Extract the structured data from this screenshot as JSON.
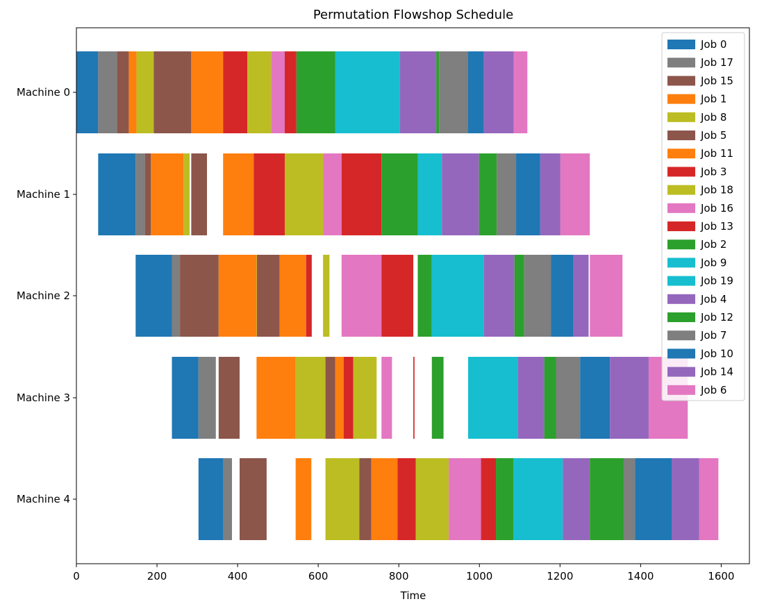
{
  "chart_data": {
    "type": "gantt",
    "title": "Permutation Flowshop Schedule",
    "xlabel": "Time",
    "ylabel": "",
    "xlim": [
      0,
      1670
    ],
    "xticks": [
      0,
      200,
      400,
      600,
      800,
      1000,
      1200,
      1400,
      1600
    ],
    "grid": false,
    "legend_position": "top-right",
    "machines": [
      "Machine 0",
      "Machine 1",
      "Machine 2",
      "Machine 3",
      "Machine 4"
    ],
    "jobs": [
      {
        "name": "Job 0",
        "color": "#1f77b4"
      },
      {
        "name": "Job 17",
        "color": "#7f7f7f"
      },
      {
        "name": "Job 15",
        "color": "#8c564b"
      },
      {
        "name": "Job 1",
        "color": "#ff7f0e"
      },
      {
        "name": "Job 8",
        "color": "#bcbd22"
      },
      {
        "name": "Job 5",
        "color": "#8c564b"
      },
      {
        "name": "Job 11",
        "color": "#ff7f0e"
      },
      {
        "name": "Job 3",
        "color": "#d62728"
      },
      {
        "name": "Job 18",
        "color": "#bcbd22"
      },
      {
        "name": "Job 16",
        "color": "#e377c2"
      },
      {
        "name": "Job 13",
        "color": "#d62728"
      },
      {
        "name": "Job 2",
        "color": "#2ca02c"
      },
      {
        "name": "Job 9",
        "color": "#17becf"
      },
      {
        "name": "Job 19",
        "color": "#17becf"
      },
      {
        "name": "Job 4",
        "color": "#9467bd"
      },
      {
        "name": "Job 12",
        "color": "#2ca02c"
      },
      {
        "name": "Job 7",
        "color": "#7f7f7f"
      },
      {
        "name": "Job 10",
        "color": "#1f77b4"
      },
      {
        "name": "Job 14",
        "color": "#9467bd"
      },
      {
        "name": "Job 6",
        "color": "#e377c2"
      }
    ],
    "tasks": [
      {
        "machine": 0,
        "job": "Job 0",
        "start": 0,
        "end": 54
      },
      {
        "machine": 0,
        "job": "Job 17",
        "start": 54,
        "end": 101
      },
      {
        "machine": 0,
        "job": "Job 15",
        "start": 101,
        "end": 130
      },
      {
        "machine": 0,
        "job": "Job 1",
        "start": 130,
        "end": 149
      },
      {
        "machine": 0,
        "job": "Job 8",
        "start": 149,
        "end": 192
      },
      {
        "machine": 0,
        "job": "Job 5",
        "start": 192,
        "end": 285
      },
      {
        "machine": 0,
        "job": "Job 11",
        "start": 285,
        "end": 364
      },
      {
        "machine": 0,
        "job": "Job 3",
        "start": 364,
        "end": 424
      },
      {
        "machine": 0,
        "job": "Job 18",
        "start": 424,
        "end": 483
      },
      {
        "machine": 0,
        "job": "Job 16",
        "start": 483,
        "end": 517
      },
      {
        "machine": 0,
        "job": "Job 13",
        "start": 517,
        "end": 546
      },
      {
        "machine": 0,
        "job": "Job 2",
        "start": 546,
        "end": 642
      },
      {
        "machine": 0,
        "job": "Job 9",
        "start": 642,
        "end": 803
      },
      {
        "machine": 0,
        "job": "Job 4",
        "start": 803,
        "end": 893
      },
      {
        "machine": 0,
        "job": "Job 12",
        "start": 893,
        "end": 900
      },
      {
        "machine": 0,
        "job": "Job 7",
        "start": 900,
        "end": 972
      },
      {
        "machine": 0,
        "job": "Job 10",
        "start": 972,
        "end": 1011
      },
      {
        "machine": 0,
        "job": "Job 14",
        "start": 1011,
        "end": 1085
      },
      {
        "machine": 0,
        "job": "Job 6",
        "start": 1085,
        "end": 1119
      },
      {
        "machine": 1,
        "job": "Job 0",
        "start": 54,
        "end": 147
      },
      {
        "machine": 1,
        "job": "Job 17",
        "start": 147,
        "end": 170
      },
      {
        "machine": 1,
        "job": "Job 15",
        "start": 170,
        "end": 185
      },
      {
        "machine": 1,
        "job": "Job 1",
        "start": 185,
        "end": 266
      },
      {
        "machine": 1,
        "job": "Job 8",
        "start": 266,
        "end": 281
      },
      {
        "machine": 1,
        "job": "Job 5",
        "start": 285,
        "end": 324
      },
      {
        "machine": 1,
        "job": "Job 11",
        "start": 364,
        "end": 440
      },
      {
        "machine": 1,
        "job": "Job 3",
        "start": 440,
        "end": 517
      },
      {
        "machine": 1,
        "job": "Job 18",
        "start": 517,
        "end": 612
      },
      {
        "machine": 1,
        "job": "Job 16",
        "start": 612,
        "end": 658
      },
      {
        "machine": 1,
        "job": "Job 13",
        "start": 658,
        "end": 757
      },
      {
        "machine": 1,
        "job": "Job 2",
        "start": 757,
        "end": 847
      },
      {
        "machine": 1,
        "job": "Job 9",
        "start": 847,
        "end": 907
      },
      {
        "machine": 1,
        "job": "Job 4",
        "start": 907,
        "end": 999
      },
      {
        "machine": 1,
        "job": "Job 12",
        "start": 999,
        "end": 1043
      },
      {
        "machine": 1,
        "job": "Job 7",
        "start": 1043,
        "end": 1091
      },
      {
        "machine": 1,
        "job": "Job 10",
        "start": 1091,
        "end": 1151
      },
      {
        "machine": 1,
        "job": "Job 14",
        "start": 1151,
        "end": 1201
      },
      {
        "machine": 1,
        "job": "Job 6",
        "start": 1201,
        "end": 1274
      },
      {
        "machine": 2,
        "job": "Job 0",
        "start": 147,
        "end": 237
      },
      {
        "machine": 2,
        "job": "Job 17",
        "start": 237,
        "end": 257
      },
      {
        "machine": 2,
        "job": "Job 15",
        "start": 257,
        "end": 353
      },
      {
        "machine": 2,
        "job": "Job 1",
        "start": 353,
        "end": 447
      },
      {
        "machine": 2,
        "job": "Job 8",
        "start": 447,
        "end": 448
      },
      {
        "machine": 2,
        "job": "Job 5",
        "start": 448,
        "end": 504
      },
      {
        "machine": 2,
        "job": "Job 11",
        "start": 504,
        "end": 570
      },
      {
        "machine": 2,
        "job": "Job 3",
        "start": 570,
        "end": 584
      },
      {
        "machine": 2,
        "job": "Job 18",
        "start": 612,
        "end": 628
      },
      {
        "machine": 2,
        "job": "Job 16",
        "start": 658,
        "end": 757
      },
      {
        "machine": 2,
        "job": "Job 13",
        "start": 757,
        "end": 836
      },
      {
        "machine": 2,
        "job": "Job 2",
        "start": 847,
        "end": 882
      },
      {
        "machine": 2,
        "job": "Job 9",
        "start": 882,
        "end": 1011
      },
      {
        "machine": 2,
        "job": "Job 4",
        "start": 1011,
        "end": 1087
      },
      {
        "machine": 2,
        "job": "Job 12",
        "start": 1087,
        "end": 1111
      },
      {
        "machine": 2,
        "job": "Job 7",
        "start": 1111,
        "end": 1178
      },
      {
        "machine": 2,
        "job": "Job 10",
        "start": 1178,
        "end": 1233
      },
      {
        "machine": 2,
        "job": "Job 14",
        "start": 1233,
        "end": 1271
      },
      {
        "machine": 2,
        "job": "Job 6",
        "start": 1274,
        "end": 1355
      },
      {
        "machine": 3,
        "job": "Job 0",
        "start": 237,
        "end": 303
      },
      {
        "machine": 3,
        "job": "Job 17",
        "start": 303,
        "end": 346
      },
      {
        "machine": 3,
        "job": "Job 15",
        "start": 353,
        "end": 405
      },
      {
        "machine": 3,
        "job": "Job 1",
        "start": 447,
        "end": 544
      },
      {
        "machine": 3,
        "job": "Job 8",
        "start": 544,
        "end": 618
      },
      {
        "machine": 3,
        "job": "Job 5",
        "start": 618,
        "end": 642
      },
      {
        "machine": 3,
        "job": "Job 11",
        "start": 642,
        "end": 663
      },
      {
        "machine": 3,
        "job": "Job 3",
        "start": 663,
        "end": 687
      },
      {
        "machine": 3,
        "job": "Job 18",
        "start": 687,
        "end": 745
      },
      {
        "machine": 3,
        "job": "Job 16",
        "start": 757,
        "end": 783
      },
      {
        "machine": 3,
        "job": "Job 13",
        "start": 836,
        "end": 839
      },
      {
        "machine": 3,
        "job": "Job 2",
        "start": 882,
        "end": 911
      },
      {
        "machine": 3,
        "job": "Job 9",
        "start": 972,
        "end": 1096
      },
      {
        "machine": 3,
        "job": "Job 4",
        "start": 1096,
        "end": 1161
      },
      {
        "machine": 3,
        "job": "Job 12",
        "start": 1161,
        "end": 1190
      },
      {
        "machine": 3,
        "job": "Job 7",
        "start": 1190,
        "end": 1250
      },
      {
        "machine": 3,
        "job": "Job 10",
        "start": 1250,
        "end": 1324
      },
      {
        "machine": 3,
        "job": "Job 14",
        "start": 1324,
        "end": 1420
      },
      {
        "machine": 3,
        "job": "Job 6",
        "start": 1420,
        "end": 1517
      },
      {
        "machine": 4,
        "job": "Job 0",
        "start": 303,
        "end": 365
      },
      {
        "machine": 4,
        "job": "Job 17",
        "start": 365,
        "end": 386
      },
      {
        "machine": 4,
        "job": "Job 15",
        "start": 405,
        "end": 472
      },
      {
        "machine": 4,
        "job": "Job 1",
        "start": 544,
        "end": 583
      },
      {
        "machine": 4,
        "job": "Job 8",
        "start": 618,
        "end": 702
      },
      {
        "machine": 4,
        "job": "Job 5",
        "start": 702,
        "end": 732
      },
      {
        "machine": 4,
        "job": "Job 11",
        "start": 732,
        "end": 797
      },
      {
        "machine": 4,
        "job": "Job 3",
        "start": 797,
        "end": 842
      },
      {
        "machine": 4,
        "job": "Job 18",
        "start": 842,
        "end": 924
      },
      {
        "machine": 4,
        "job": "Job 16",
        "start": 924,
        "end": 1004
      },
      {
        "machine": 4,
        "job": "Job 13",
        "start": 1004,
        "end": 1041
      },
      {
        "machine": 4,
        "job": "Job 2",
        "start": 1041,
        "end": 1084
      },
      {
        "machine": 4,
        "job": "Job 9",
        "start": 1084,
        "end": 1207
      },
      {
        "machine": 4,
        "job": "Job 4",
        "start": 1207,
        "end": 1274
      },
      {
        "machine": 4,
        "job": "Job 12",
        "start": 1274,
        "end": 1358
      },
      {
        "machine": 4,
        "job": "Job 7",
        "start": 1358,
        "end": 1386
      },
      {
        "machine": 4,
        "job": "Job 10",
        "start": 1386,
        "end": 1477
      },
      {
        "machine": 4,
        "job": "Job 14",
        "start": 1477,
        "end": 1545
      },
      {
        "machine": 4,
        "job": "Job 6",
        "start": 1545,
        "end": 1593
      }
    ]
  }
}
